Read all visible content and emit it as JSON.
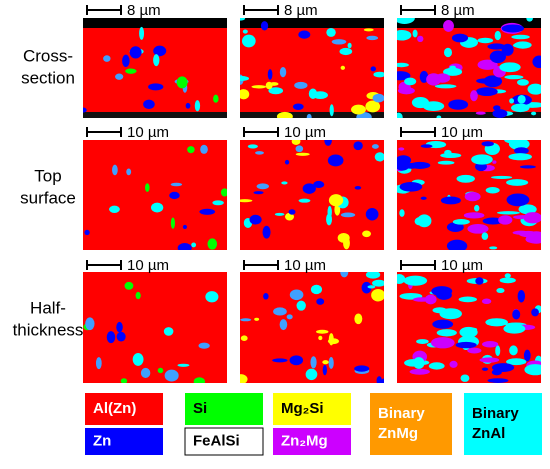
{
  "rows": [
    {
      "label": [
        "Cross-",
        "section"
      ],
      "scale_bars": [
        "8 µm",
        "8 µm",
        "8 µm"
      ]
    },
    {
      "label": [
        "Top",
        "surface"
      ],
      "scale_bars": [
        "10 µm",
        "10 µm",
        "10 µm"
      ]
    },
    {
      "label": [
        "Half-",
        "thickness"
      ],
      "scale_bars": [
        "10 µm",
        "10 µm",
        "10 µm"
      ]
    }
  ],
  "legend": [
    {
      "label": [
        "Al(Zn)"
      ],
      "color": "#ff0000",
      "text_color": "#ffffff"
    },
    {
      "label": [
        "Si"
      ],
      "color": "#00ff00",
      "text_color": "#000000"
    },
    {
      "label": [
        "Mg₂Si"
      ],
      "color": "#ffff00",
      "text_color": "#000000"
    },
    {
      "label": [
        "Zn"
      ],
      "color": "#0000ff",
      "text_color": "#ffffff"
    },
    {
      "label": [
        "FeAlSi"
      ],
      "color": "#ffffff",
      "text_color": "#000000"
    },
    {
      "label": [
        "Zn₂Mg"
      ],
      "color": "#cc00ff",
      "text_color": "#ffffff"
    },
    {
      "label": [
        "Binary",
        "ZnMg"
      ],
      "color": "#ff9900",
      "text_color": "#ffffff"
    },
    {
      "label": [
        "Binary",
        "ZnAl"
      ],
      "color": "#00ffff",
      "text_color": "#000000"
    }
  ]
}
